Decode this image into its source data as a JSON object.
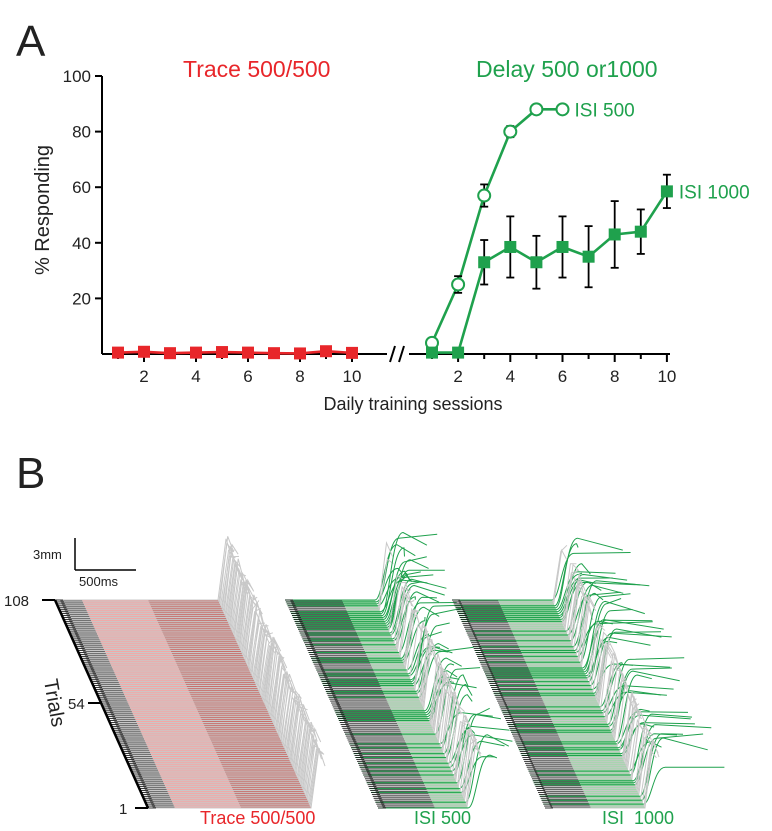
{
  "colors": {
    "trace": "#e8262a",
    "delay": "#1fa14d",
    "axis": "#000000",
    "gray_trace": "#c8c8c8",
    "pink_band": "#f6a6a4",
    "green_band": "#9ed8a8",
    "dark_band": "#555555"
  },
  "panel_a": {
    "letter": "A",
    "ylabel": "% Responding",
    "xlabel": "Daily training sessions",
    "left_title": "Trace 500/500",
    "right_title": "Delay 500 or1000"
  },
  "panel_b": {
    "letter": "B",
    "scale_y_label": "3mm",
    "scale_x_label": "500ms",
    "trials_label": "Trials",
    "trial_ticks": [
      "108",
      "54",
      "1"
    ],
    "labels": [
      "Trace 500/500",
      "ISI 500",
      "ISI  1000"
    ]
  },
  "chart_data": [
    {
      "type": "line",
      "panel": "A-left",
      "title": "Trace 500/500",
      "xlabel": "Daily training sessions",
      "ylabel": "% Responding",
      "xlim": [
        0.5,
        10.5
      ],
      "ylim": [
        0,
        100
      ],
      "xticks": [
        2,
        4,
        6,
        8,
        10
      ],
      "yticks": [
        20,
        40,
        60,
        80,
        100
      ],
      "series": [
        {
          "marker": "square",
          "color": "#e8262a",
          "x": [
            1,
            2,
            3,
            4,
            5,
            6,
            7,
            8,
            9,
            10
          ],
          "y": [
            0.5,
            0.8,
            0.3,
            0.5,
            0.7,
            0.5,
            0.3,
            0.2,
            1.0,
            0.4
          ]
        }
      ]
    },
    {
      "type": "line",
      "panel": "A-right",
      "title": "Delay 500 or1000",
      "xlim": [
        0.5,
        10.5
      ],
      "ylim": [
        0,
        100
      ],
      "xticks": [
        2,
        4,
        6,
        8,
        10
      ],
      "series": [
        {
          "name": "ISI 500",
          "marker": "open-circle",
          "color": "#1fa14d",
          "x": [
            1,
            2,
            3,
            4,
            5,
            6
          ],
          "y": [
            4,
            25,
            57,
            80,
            88,
            88
          ],
          "err": [
            0,
            3,
            4,
            2,
            1,
            1
          ]
        },
        {
          "name": "ISI 1000",
          "marker": "square",
          "color": "#1fa14d",
          "x": [
            1,
            2,
            3,
            4,
            5,
            6,
            7,
            8,
            9,
            10
          ],
          "y": [
            0.5,
            0.5,
            33,
            38.5,
            33,
            38.5,
            35,
            43,
            44,
            58.5
          ],
          "err": [
            0,
            0,
            8,
            11,
            9.5,
            11,
            11,
            12,
            8,
            6
          ]
        }
      ]
    }
  ]
}
